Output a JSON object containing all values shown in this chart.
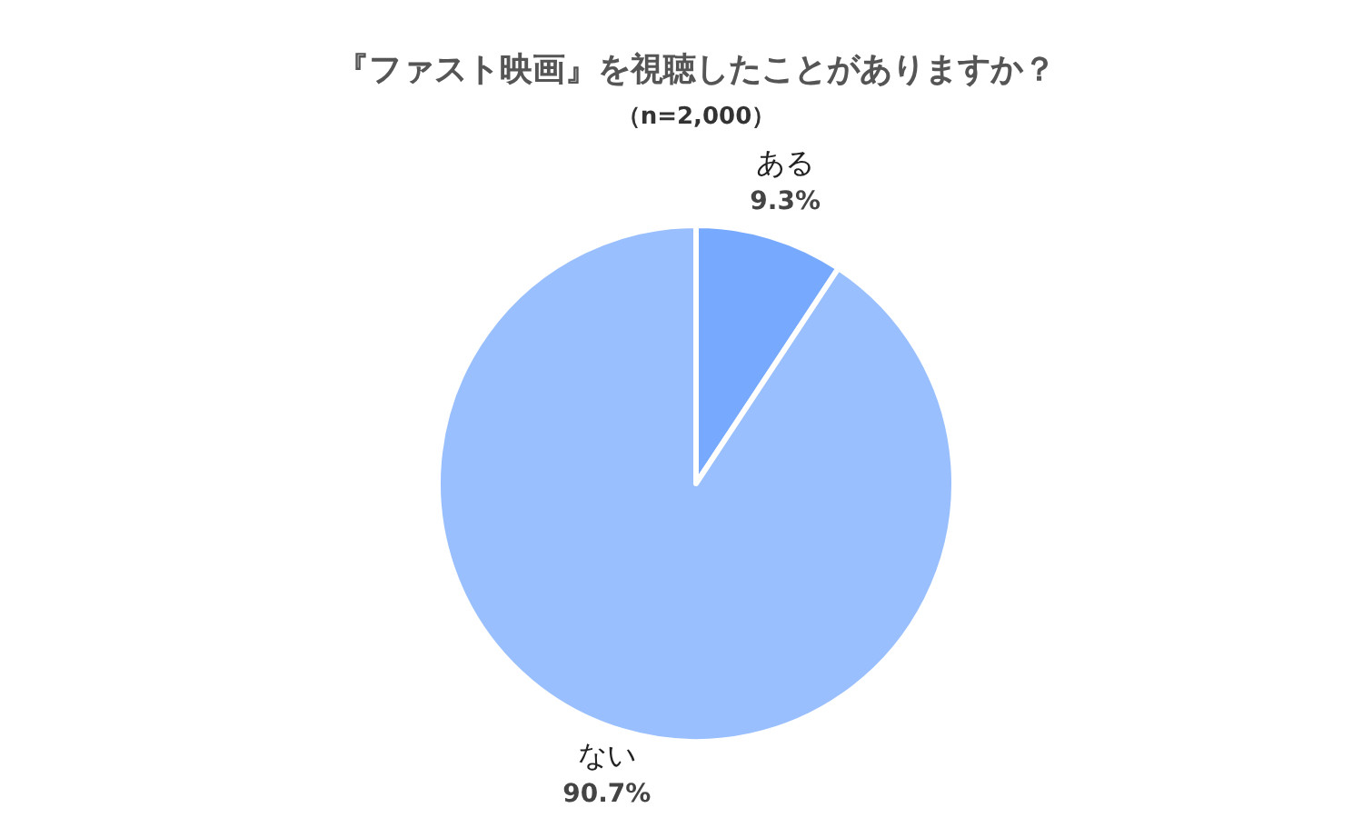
{
  "chart_data": {
    "type": "pie",
    "title": "『ファスト映画』を視聴したことがありますか？",
    "subtitle": "（n=2,000）",
    "categories": [
      "ある",
      "ない"
    ],
    "values": [
      9.3,
      90.7
    ],
    "colors": [
      "#77aaff",
      "#99bfff"
    ],
    "value_labels": [
      "9.3%",
      "90.7%"
    ],
    "legend": false
  }
}
